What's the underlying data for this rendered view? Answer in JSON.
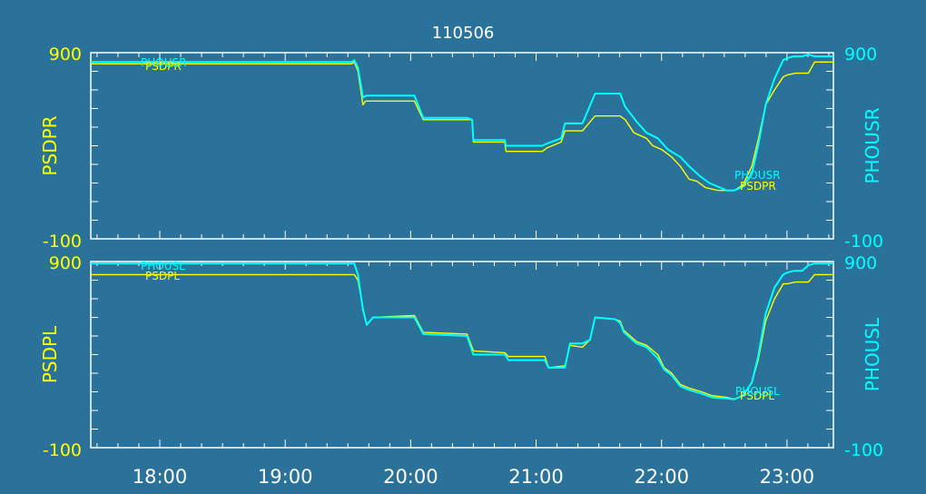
{
  "title": "110506",
  "colors": {
    "background": "#2a7299",
    "frame": "#ffffff",
    "yellow": "#ffff00",
    "cyan": "#00ffff",
    "title_text": "#ffffff"
  },
  "x_axis": {
    "ticks": [
      "18:00",
      "19:00",
      "20:00",
      "21:00",
      "22:00",
      "23:00"
    ],
    "tick_hours": [
      18,
      19,
      20,
      21,
      22,
      23
    ],
    "range_hours": [
      17.45,
      23.37
    ]
  },
  "chart_data": [
    {
      "type": "line",
      "ylim": [
        -100,
        900
      ],
      "grid": false,
      "left_axis": {
        "label": "PSDPR",
        "min_label": "-100",
        "max_label": "900"
      },
      "right_axis": {
        "label": "PHOUSR",
        "min_label": "-100",
        "max_label": "900"
      },
      "series": [
        {
          "name": "PSDPR",
          "color": "#ffff00",
          "legend_label": "PSDPR",
          "end_label": "PSDPR",
          "x": [
            17.45,
            19.53,
            19.55,
            19.58,
            19.62,
            19.64,
            19.67,
            20.03,
            20.1,
            20.49,
            20.5,
            20.75,
            20.76,
            21.03,
            21.05,
            21.09,
            21.2,
            21.23,
            21.32,
            21.37,
            21.47,
            21.67,
            21.71,
            21.78,
            21.88,
            21.93,
            22.0,
            22.08,
            22.15,
            22.22,
            22.28,
            22.35,
            22.45,
            22.58,
            22.65,
            22.72,
            22.77,
            22.83,
            22.9,
            22.97,
            23.0,
            23.07,
            23.17,
            23.22,
            23.37
          ],
          "y": [
            840,
            840,
            850,
            800,
            620,
            640,
            640,
            640,
            540,
            540,
            420,
            420,
            370,
            370,
            370,
            390,
            420,
            480,
            480,
            480,
            560,
            560,
            540,
            470,
            440,
            400,
            380,
            340,
            290,
            220,
            210,
            175,
            160,
            160,
            190,
            290,
            430,
            620,
            700,
            770,
            780,
            790,
            790,
            850,
            850
          ]
        },
        {
          "name": "PHOUSR",
          "color": "#00ffff",
          "legend_label": "PHOUSR",
          "end_label": "PHOUSR",
          "x": [
            17.45,
            19.53,
            19.55,
            19.58,
            19.62,
            19.65,
            20.03,
            20.1,
            20.45,
            20.49,
            20.5,
            20.75,
            20.76,
            21.03,
            21.05,
            21.08,
            21.2,
            21.23,
            21.32,
            21.37,
            21.47,
            21.63,
            21.67,
            21.71,
            21.8,
            21.88,
            21.97,
            22.05,
            22.15,
            22.22,
            22.3,
            22.38,
            22.52,
            22.58,
            22.65,
            22.72,
            22.77,
            22.83,
            22.9,
            22.97,
            23.0,
            23.05,
            23.12,
            23.17,
            23.22,
            23.37
          ],
          "y": [
            850,
            850,
            860,
            820,
            660,
            670,
            670,
            550,
            550,
            540,
            430,
            430,
            400,
            400,
            400,
            410,
            440,
            520,
            520,
            520,
            680,
            680,
            680,
            610,
            530,
            470,
            440,
            380,
            340,
            290,
            240,
            200,
            160,
            160,
            180,
            250,
            400,
            620,
            760,
            860,
            870,
            880,
            880,
            890,
            880,
            880
          ]
        }
      ]
    },
    {
      "type": "line",
      "ylim": [
        -100,
        900
      ],
      "grid": false,
      "left_axis": {
        "label": "PSDPL",
        "min_label": "-100",
        "max_label": "900"
      },
      "right_axis": {
        "label": "PHOUSL",
        "min_label": "-100",
        "max_label": "900"
      },
      "series": [
        {
          "name": "PSDPL",
          "color": "#ffff00",
          "legend_label": "PSDPL",
          "end_label": "PSDPL",
          "x": [
            17.45,
            19.53,
            19.55,
            19.58,
            19.62,
            19.65,
            19.7,
            20.03,
            20.1,
            20.45,
            20.5,
            20.75,
            20.78,
            21.03,
            21.07,
            21.1,
            21.23,
            21.27,
            21.37,
            21.43,
            21.47,
            21.63,
            21.67,
            21.7,
            21.8,
            21.88,
            21.97,
            22.02,
            22.08,
            22.15,
            22.22,
            22.32,
            22.4,
            22.52,
            22.58,
            22.65,
            22.72,
            22.77,
            22.83,
            22.9,
            22.97,
            23.0,
            23.07,
            23.17,
            23.22,
            23.37
          ],
          "y": [
            830,
            830,
            830,
            800,
            650,
            560,
            600,
            610,
            520,
            510,
            420,
            410,
            390,
            390,
            390,
            330,
            340,
            450,
            440,
            480,
            600,
            590,
            580,
            530,
            470,
            450,
            400,
            330,
            300,
            240,
            220,
            200,
            180,
            170,
            160,
            180,
            250,
            370,
            580,
            700,
            780,
            780,
            790,
            790,
            830,
            830
          ]
        },
        {
          "name": "PHOUSL",
          "color": "#00ffff",
          "legend_label": "PHOUSL",
          "end_label": "PHOUSL",
          "x": [
            17.45,
            19.53,
            19.55,
            19.58,
            19.62,
            19.65,
            19.7,
            20.03,
            20.1,
            20.45,
            20.5,
            20.75,
            20.78,
            21.03,
            21.07,
            21.1,
            21.23,
            21.27,
            21.37,
            21.43,
            21.47,
            21.63,
            21.67,
            21.7,
            21.8,
            21.88,
            21.97,
            22.02,
            22.08,
            22.15,
            22.22,
            22.32,
            22.4,
            22.52,
            22.58,
            22.65,
            22.72,
            22.77,
            22.83,
            22.9,
            22.97,
            23.0,
            23.05,
            23.12,
            23.17,
            23.22,
            23.37
          ],
          "y": [
            890,
            890,
            890,
            830,
            640,
            560,
            600,
            600,
            510,
            500,
            400,
            400,
            370,
            370,
            370,
            330,
            330,
            460,
            460,
            480,
            600,
            590,
            570,
            520,
            460,
            440,
            380,
            320,
            290,
            230,
            210,
            190,
            170,
            165,
            160,
            180,
            250,
            390,
            620,
            760,
            830,
            840,
            850,
            850,
            880,
            890,
            890
          ]
        }
      ]
    }
  ]
}
